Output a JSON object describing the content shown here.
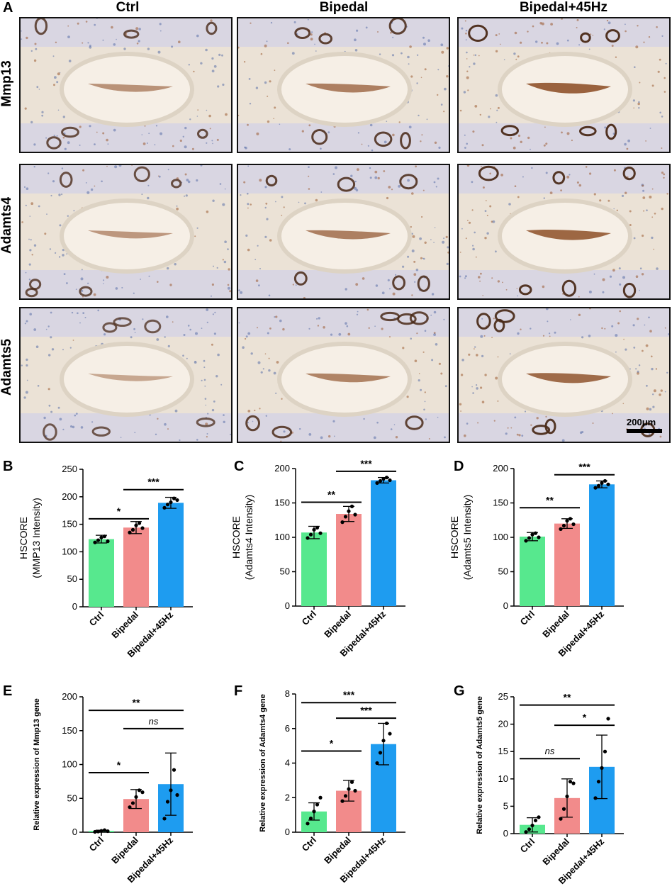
{
  "panel_a": {
    "letter": "A",
    "columns": [
      "Ctrl",
      "Bipedal",
      "Bipedal+45Hz"
    ],
    "rows": [
      "Mmp13",
      "Adamts4",
      "Adamts5"
    ],
    "stain_level": [
      [
        0.35,
        0.55,
        0.85
      ],
      [
        0.3,
        0.55,
        0.8
      ],
      [
        0.15,
        0.5,
        0.75
      ]
    ],
    "scale_bar_label": "200μm"
  },
  "colors": {
    "ctrl": "#57e88e",
    "bipedal": "#f28b8b",
    "vib": "#1e9cf0",
    "stain": "#8a4a22",
    "tissue": "#ece3d8"
  },
  "chart_data": [
    {
      "letter": "B",
      "type": "bar",
      "categories": [
        "Ctrl",
        "Bipedal",
        "Bipedal+45Hz"
      ],
      "values": [
        123,
        144,
        189
      ],
      "errors": [
        7,
        11,
        10
      ],
      "points": [
        [
          117,
          121,
          126,
          128,
          119
        ],
        [
          135,
          140,
          148,
          152,
          143
        ],
        [
          180,
          186,
          190,
          197,
          194
        ]
      ],
      "ylabel_lines": [
        "HSCORE",
        "(MMP13 Intensity)"
      ],
      "ylim": [
        0,
        250
      ],
      "yticks": [
        0,
        50,
        100,
        150,
        200,
        250
      ],
      "sig": [
        {
          "from": 0,
          "to": 1,
          "label": "*",
          "y": 160
        },
        {
          "from": 1,
          "to": 2,
          "label": "***",
          "y": 213
        }
      ]
    },
    {
      "letter": "C",
      "type": "bar",
      "categories": [
        "Ctrl",
        "Bipedal",
        "Bipedal+45Hz"
      ],
      "values": [
        107,
        134,
        183
      ],
      "errors": [
        9,
        11,
        4
      ],
      "points": [
        [
          99,
          104,
          111,
          114,
          106
        ],
        [
          122,
          130,
          138,
          145,
          133
        ],
        [
          179,
          182,
          185,
          187,
          183
        ]
      ],
      "ylabel_lines": [
        "HSCORE",
        "(Adamts4 Intensity)"
      ],
      "ylim": [
        0,
        200
      ],
      "yticks": [
        0,
        50,
        100,
        150,
        200
      ],
      "sig": [
        {
          "from": 0,
          "to": 1,
          "label": "**",
          "y": 151
        },
        {
          "from": 1,
          "to": 2,
          "label": "***",
          "y": 196
        }
      ]
    },
    {
      "letter": "D",
      "type": "bar",
      "categories": [
        "Ctrl",
        "Bipedal",
        "Bipedal+45Hz"
      ],
      "values": [
        101,
        120,
        177
      ],
      "errors": [
        6,
        7,
        5
      ],
      "points": [
        [
          95,
          99,
          104,
          106,
          100
        ],
        [
          112,
          117,
          124,
          127,
          119
        ],
        [
          172,
          175,
          179,
          182,
          177
        ]
      ],
      "ylabel_lines": [
        "HSCORE",
        "(Adamts5 Intensity)"
      ],
      "ylim": [
        0,
        200
      ],
      "yticks": [
        0,
        50,
        100,
        150,
        200
      ],
      "sig": [
        {
          "from": 0,
          "to": 1,
          "label": "**",
          "y": 143
        },
        {
          "from": 1,
          "to": 2,
          "label": "***",
          "y": 191
        }
      ]
    },
    {
      "letter": "E",
      "type": "bar",
      "categories": [
        "Ctrl",
        "Bipedal",
        "Bipedal+45Hz"
      ],
      "values": [
        2,
        49,
        71
      ],
      "errors": [
        1,
        14,
        46
      ],
      "points": [
        [
          0.5,
          1,
          2,
          3,
          1.5
        ],
        [
          37,
          43,
          52,
          62,
          59
        ],
        [
          20,
          45,
          62,
          92,
          55
        ]
      ],
      "ylabel_lines": [
        "Relative expression of Mmp13 gene"
      ],
      "ylim": [
        0,
        200
      ],
      "yticks": [
        0,
        50,
        100,
        150,
        200
      ],
      "sig": [
        {
          "from": 0,
          "to": 1,
          "label": "*",
          "y": 88
        },
        {
          "from": 1,
          "to": 2,
          "label": "ns",
          "y": 153
        },
        {
          "from": 0,
          "to": 2,
          "label": "**",
          "y": 180
        }
      ]
    },
    {
      "letter": "F",
      "type": "bar",
      "categories": [
        "Ctrl",
        "Bipedal",
        "Bipedal+45Hz"
      ],
      "values": [
        1.2,
        2.4,
        5.1
      ],
      "errors": [
        0.5,
        0.6,
        1.2
      ],
      "points": [
        [
          0.5,
          0.8,
          1.2,
          1.6,
          2.0
        ],
        [
          1.8,
          2.1,
          2.5,
          2.9,
          2.4
        ],
        [
          4.0,
          4.6,
          5.3,
          6.3,
          5.7
        ]
      ],
      "ylabel_lines": [
        "Relative expression of Adamts4 gene"
      ],
      "ylim": [
        0,
        8
      ],
      "yticks": [
        0,
        2,
        4,
        6,
        8
      ],
      "sig": [
        {
          "from": 0,
          "to": 1,
          "label": "*",
          "y": 4.7
        },
        {
          "from": 1,
          "to": 2,
          "label": "***",
          "y": 6.6
        },
        {
          "from": 0,
          "to": 2,
          "label": "***",
          "y": 7.5
        }
      ]
    },
    {
      "letter": "G",
      "type": "bar",
      "categories": [
        "Ctrl",
        "Bipedal",
        "Bipedal+45Hz"
      ],
      "values": [
        1.6,
        6.5,
        12.2
      ],
      "errors": [
        1.3,
        3.5,
        5.8
      ],
      "points": [
        [
          0.3,
          0.8,
          1.5,
          2.4,
          3.0
        ],
        [
          2.7,
          4.5,
          6.8,
          9.5,
          9.2
        ],
        [
          6.5,
          9.5,
          12.0,
          15.0,
          21.0
        ]
      ],
      "ylabel_lines": [
        "Relative expression of Adamts5 gene"
      ],
      "ylim": [
        0,
        25
      ],
      "yticks": [
        0,
        5,
        10,
        15,
        20,
        25
      ],
      "sig": [
        {
          "from": 0,
          "to": 1,
          "label": "ns",
          "y": 13.7
        },
        {
          "from": 1,
          "to": 2,
          "label": "*",
          "y": 19.8
        },
        {
          "from": 0,
          "to": 2,
          "label": "**",
          "y": 23.5
        }
      ]
    }
  ]
}
